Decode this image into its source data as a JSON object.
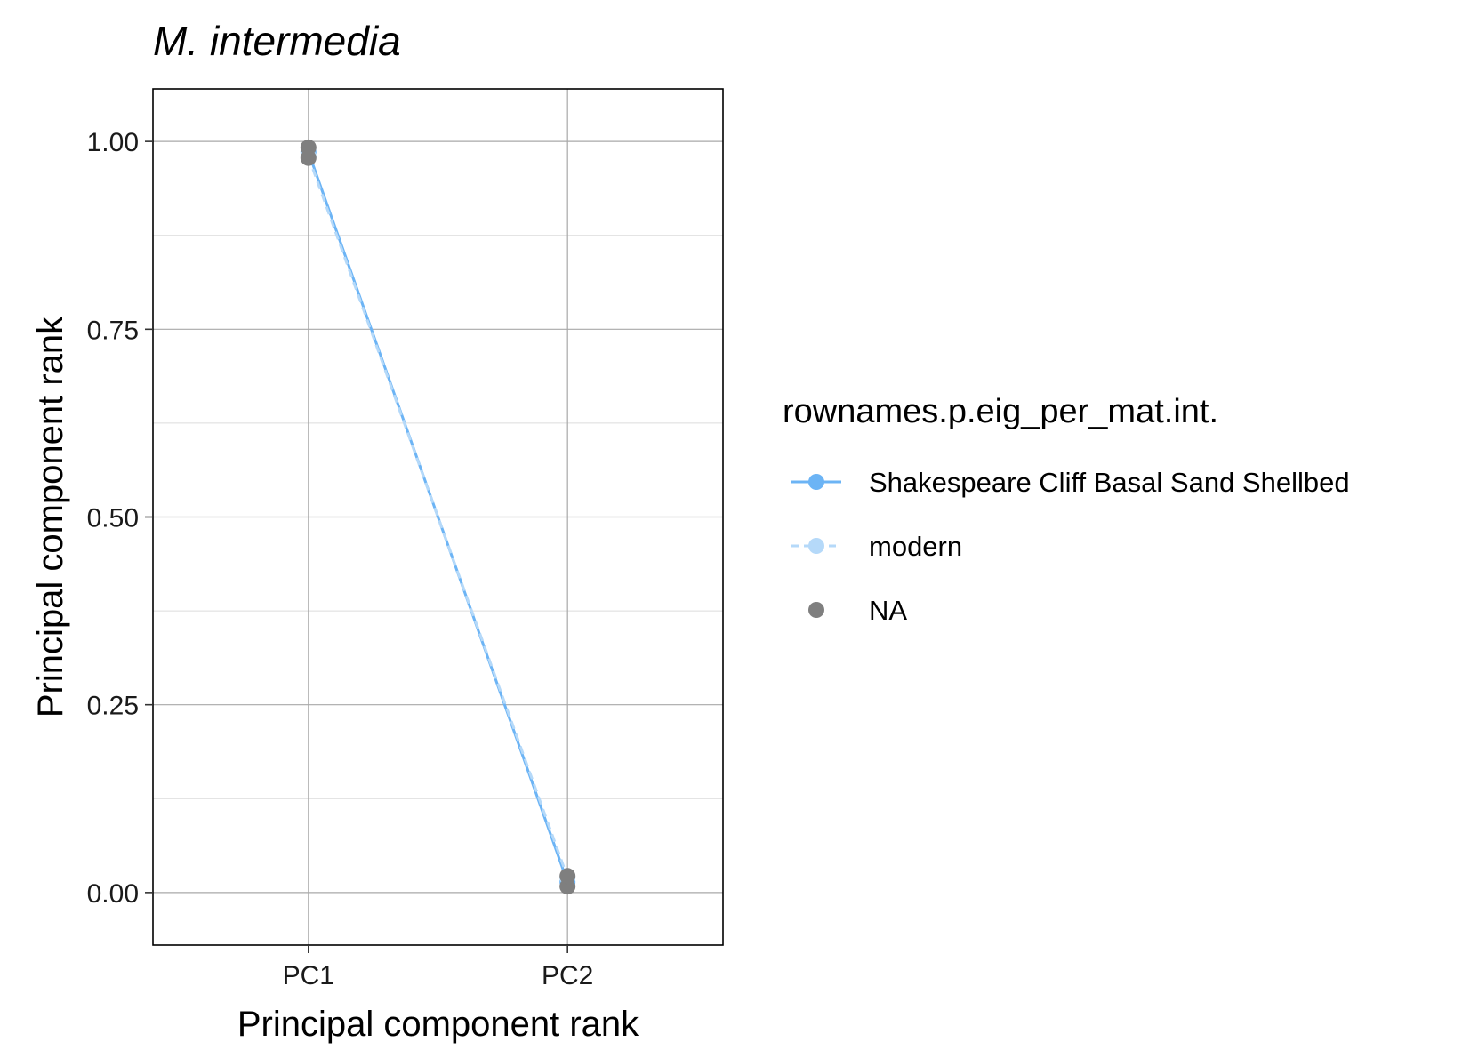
{
  "chart_data": {
    "type": "line",
    "title": "M. intermedia",
    "xlabel": "Principal component rank",
    "ylabel": "Principal component rank",
    "categories": [
      "PC1",
      "PC2"
    ],
    "ylim": [
      -0.07,
      1.07
    ],
    "y_ticks": [
      0,
      0.25,
      0.5,
      0.75,
      1
    ],
    "y_tick_labels": [
      "0.00",
      "0.25",
      "0.50",
      "0.75",
      "1.00"
    ],
    "grid": true,
    "legend": {
      "title": "rownames.p.eig_per_mat.int.",
      "placement": "right",
      "items": [
        {
          "label": "Shakespeare Cliff Basal Sand Shellbed",
          "color": "#6CB4F5",
          "line": "solid"
        },
        {
          "label": "modern",
          "color": "#B5D9F9",
          "line": "dashed"
        },
        {
          "label": "NA",
          "color": "#7F7F7F",
          "line": "none"
        }
      ]
    },
    "series": [
      {
        "name": "Shakespeare Cliff Basal Sand Shellbed",
        "color": "#6CB4F5",
        "line": "solid",
        "values": [
          0.986,
          0.014
        ]
      },
      {
        "name": "modern",
        "color": "#B5D9F9",
        "line": "dashed",
        "values": [
          0.98,
          0.02
        ]
      },
      {
        "name": "NA",
        "color": "#7F7F7F",
        "line": "none",
        "values": [
          0.992,
          0.008
        ]
      }
    ],
    "extra_points": [
      {
        "series": "NA",
        "color": "#7F7F7F",
        "x": "PC1",
        "y": 0.978
      },
      {
        "series": "NA",
        "color": "#7F7F7F",
        "x": "PC2",
        "y": 0.022
      }
    ]
  }
}
